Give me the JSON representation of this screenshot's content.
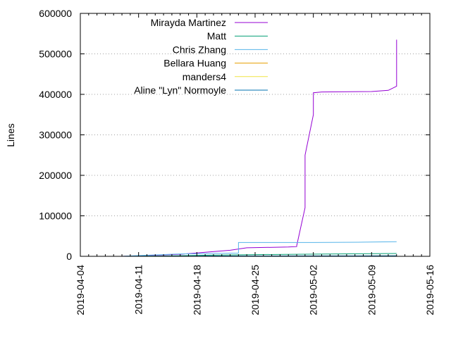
{
  "chart_data": {
    "type": "line",
    "title": "",
    "xlabel": "",
    "ylabel": "Lines",
    "x_axis": {
      "type": "date",
      "range": [
        "2019-04-04",
        "2019-05-16"
      ],
      "ticks": [
        "2019-04-04",
        "2019-04-11",
        "2019-04-18",
        "2019-04-25",
        "2019-05-02",
        "2019-05-09",
        "2019-05-16"
      ]
    },
    "y_axis": {
      "range": [
        0,
        600000
      ],
      "ticks": [
        0,
        100000,
        200000,
        300000,
        400000,
        500000,
        600000
      ]
    },
    "grid": "horizontal dotted at y ticks",
    "legend_position": "top-left",
    "series": [
      {
        "name": "Mirayda Martinez",
        "color": "#9400d3",
        "x": [
          "2019-04-09",
          "2019-04-16",
          "2019-04-22",
          "2019-04-23",
          "2019-04-24",
          "2019-04-29",
          "2019-04-30",
          "2019-04-30",
          "2019-05-01",
          "2019-05-01",
          "2019-05-02",
          "2019-05-02",
          "2019-05-03",
          "2019-05-09",
          "2019-05-11",
          "2019-05-12",
          "2019-05-12"
        ],
        "y": [
          0,
          5000,
          15000,
          18000,
          21000,
          23000,
          24000,
          26000,
          120000,
          250000,
          350000,
          404000,
          406000,
          407000,
          410000,
          420000,
          535000
        ]
      },
      {
        "name": "Matt",
        "color": "#009e73",
        "x": [
          "2019-04-09",
          "2019-04-16",
          "2019-04-20",
          "2019-04-24",
          "2019-04-30",
          "2019-05-05",
          "2019-05-12"
        ],
        "y": [
          0,
          1500,
          3000,
          4000,
          5000,
          6000,
          7000
        ]
      },
      {
        "name": "Chris Zhang",
        "color": "#56b4e9",
        "x": [
          "2019-04-09",
          "2019-04-11",
          "2019-04-16",
          "2019-04-23",
          "2019-04-23",
          "2019-05-02",
          "2019-05-08",
          "2019-05-12"
        ],
        "y": [
          0,
          2000,
          6000,
          8000,
          34000,
          34000,
          35000,
          36000
        ]
      },
      {
        "name": "Bellara Huang",
        "color": "#e69f00",
        "x": [
          "2019-04-09",
          "2019-04-23",
          "2019-05-12"
        ],
        "y": [
          0,
          500,
          1000
        ]
      },
      {
        "name": "manders4",
        "color": "#f0e442",
        "x": [
          "2019-04-09",
          "2019-05-12"
        ],
        "y": [
          0,
          300
        ]
      },
      {
        "name": "Aline \"Lyn\" Normoyle",
        "color": "#0072b2",
        "x": [
          "2019-04-09",
          "2019-04-20",
          "2019-05-12"
        ],
        "y": [
          0,
          800,
          1200
        ]
      }
    ]
  }
}
